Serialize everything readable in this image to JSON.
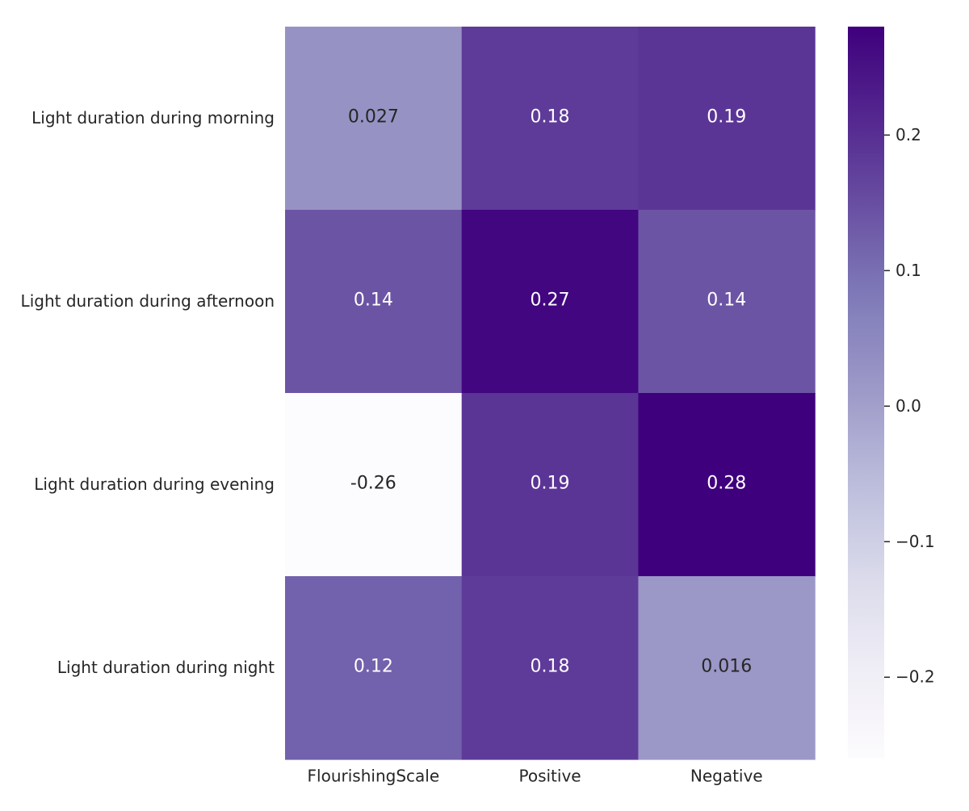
{
  "chart_data": {
    "type": "heatmap",
    "title": "",
    "xlabel": "",
    "ylabel": "",
    "x_categories": [
      "FlourishingScale",
      "Positive",
      "Negative"
    ],
    "y_categories": [
      "Light duration during morning",
      "Light duration during afternoon",
      "Light duration during evening",
      "Light duration during night"
    ],
    "values": [
      [
        0.027,
        0.18,
        0.19
      ],
      [
        0.14,
        0.27,
        0.14
      ],
      [
        -0.26,
        0.19,
        0.28
      ],
      [
        0.12,
        0.18,
        0.016
      ]
    ],
    "value_labels": [
      [
        "0.027",
        "0.18",
        "0.19"
      ],
      [
        "0.14",
        "0.27",
        "0.14"
      ],
      [
        "-0.26",
        "0.19",
        "0.28"
      ],
      [
        "0.12",
        "0.18",
        "0.016"
      ]
    ],
    "colormap": "Purples",
    "color_range": [
      -0.26,
      0.28
    ],
    "colorbar": {
      "ticks": [
        -0.2,
        -0.1,
        0.0,
        0.1,
        0.2
      ],
      "tick_labels": [
        "−0.2",
        "−0.1",
        "0.0",
        "0.1",
        "0.2"
      ],
      "placement": "right"
    },
    "colors": {
      "low": "#fcfbfd",
      "high": "#3f007d",
      "text_dark": "#262626",
      "text_light": "#ffffff"
    }
  }
}
